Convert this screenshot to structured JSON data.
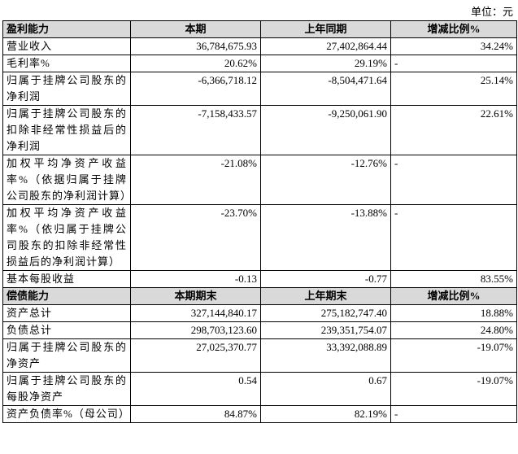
{
  "unit": "单位：元",
  "table": {
    "sections": [
      {
        "header": [
          "盈利能力",
          "本期",
          "上年同期",
          "增减比例%"
        ],
        "rows": [
          [
            "营业收入",
            "36,784,675.93",
            "27,402,864.44",
            "34.24%"
          ],
          [
            "毛利率%",
            "20.62%",
            "29.19%",
            "-"
          ],
          [
            "归属于挂牌公司股东的净利润",
            "-6,366,718.12",
            "-8,504,471.64",
            "25.14%"
          ],
          [
            "归属于挂牌公司股东的扣除非经常性损益后的净利润",
            "-7,158,433.57",
            "-9,250,061.90",
            "22.61%"
          ],
          [
            "加权平均净资产收益率%（依据归属于挂牌公司股东的净利润计算）",
            "-21.08%",
            "-12.76%",
            "-"
          ],
          [
            "加权平均净资产收益率%（依归属于挂牌公司股东的扣除非经常性损益后的净利润计算）",
            "-23.70%",
            "-13.88%",
            "-"
          ],
          [
            "基本每股收益",
            "-0.13",
            "-0.77",
            "83.55%"
          ]
        ]
      },
      {
        "header": [
          "偿债能力",
          "本期期末",
          "上年期末",
          "增减比例%"
        ],
        "rows": [
          [
            "资产总计",
            "327,144,840.17",
            "275,182,747.40",
            "18.88%"
          ],
          [
            "负债总计",
            "298,703,123.60",
            "239,351,754.07",
            "24.80%"
          ],
          [
            "归属于挂牌公司股东的净资产",
            "27,025,370.77",
            "33,392,088.89",
            "-19.07%"
          ],
          [
            "归属于挂牌公司股东的每股净资产",
            "0.54",
            "0.67",
            "-19.07%"
          ],
          [
            "资产负债率%（母公司）",
            "84.87%",
            "82.19%",
            "-"
          ]
        ]
      }
    ]
  }
}
